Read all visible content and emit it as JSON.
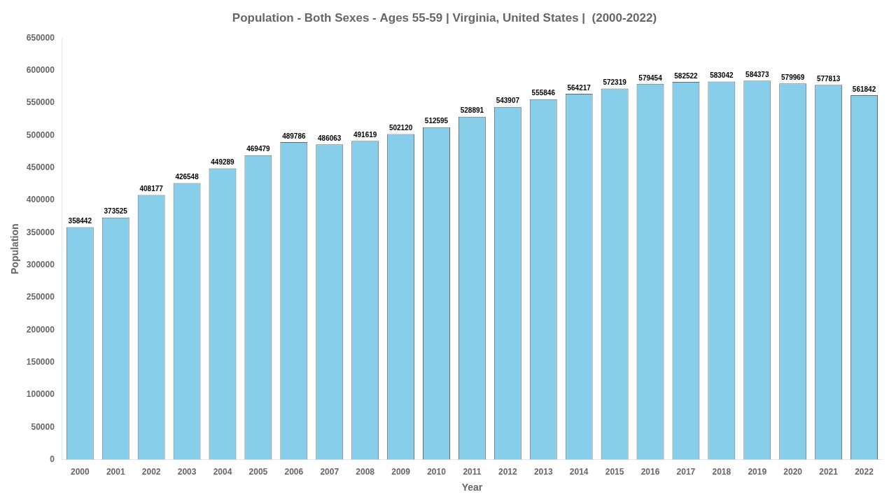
{
  "chart_data": {
    "type": "bar",
    "title": "Population - Both Sexes - Ages 55-59 | Virginia, United States |  (2000-2022)",
    "x_label": "Year",
    "y_label": "Population",
    "categories": [
      "2000",
      "2001",
      "2002",
      "2003",
      "2004",
      "2005",
      "2006",
      "2007",
      "2008",
      "2009",
      "2010",
      "2011",
      "2012",
      "2013",
      "2014",
      "2015",
      "2016",
      "2017",
      "2018",
      "2019",
      "2020",
      "2021",
      "2022"
    ],
    "values": [
      358442,
      373525,
      408177,
      426548,
      449289,
      469479,
      489786,
      486063,
      491619,
      502120,
      512595,
      528891,
      543907,
      555846,
      564217,
      572319,
      579454,
      582522,
      583042,
      584373,
      579969,
      577813,
      561842
    ],
    "color": "#87CEEB",
    "ylim": [
      0,
      650000
    ],
    "yticks": [
      0,
      50000,
      100000,
      150000,
      200000,
      250000,
      300000,
      350000,
      400000,
      450000,
      500000,
      550000,
      600000,
      650000
    ],
    "grid": false,
    "data_labels": true
  }
}
